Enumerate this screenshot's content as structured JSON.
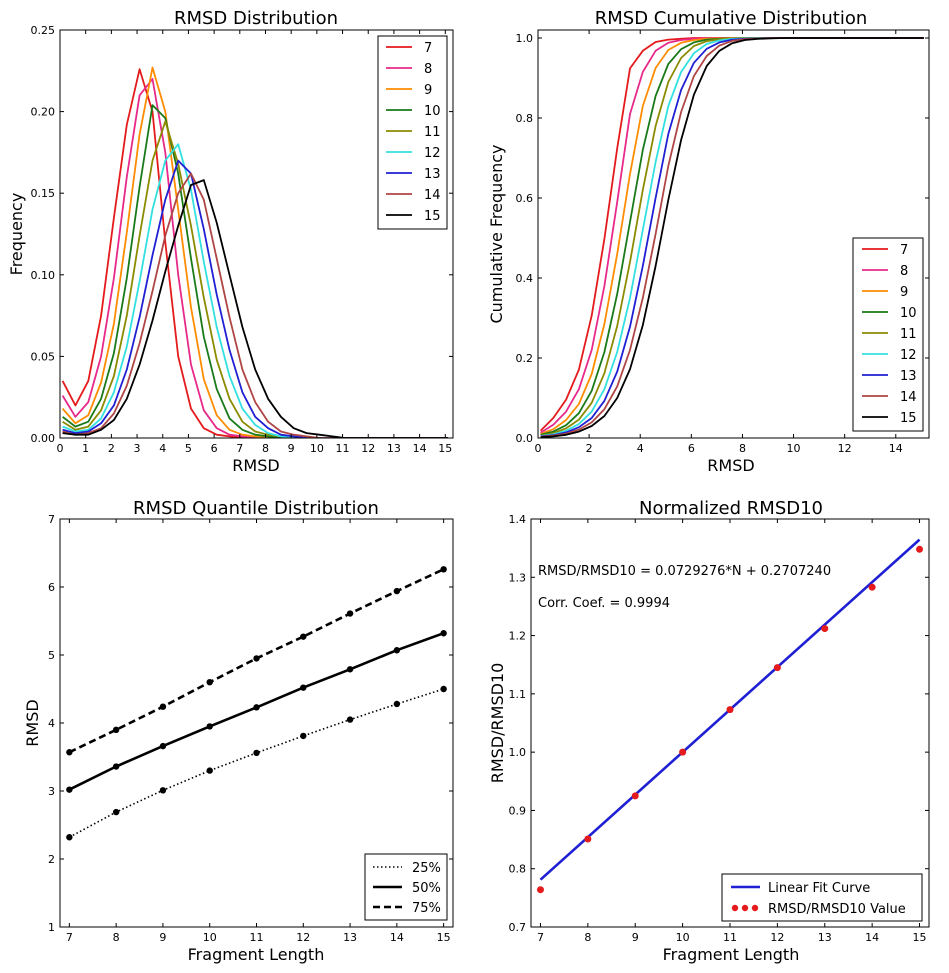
{
  "chart_data": [
    {
      "type": "line",
      "title": "RMSD Distribution",
      "xlabel": "RMSD",
      "ylabel": "Frequency",
      "xlim": [
        0,
        15.3
      ],
      "ylim": [
        0,
        0.25
      ],
      "xticks": [
        "0",
        "1",
        "2",
        "3",
        "4",
        "5",
        "6",
        "7",
        "8",
        "9",
        "10",
        "11",
        "12",
        "13",
        "14",
        "15"
      ],
      "yticks": [
        "0.00",
        "0.05",
        "0.10",
        "0.15",
        "0.20",
        "0.25"
      ],
      "legend_position": "top-right",
      "x": [
        0.1,
        0.6,
        1.1,
        1.6,
        2.1,
        2.6,
        3.1,
        3.6,
        4.1,
        4.6,
        5.1,
        5.6,
        6.1,
        6.6,
        7.1,
        7.6,
        8.1,
        8.6,
        9.1,
        9.6,
        10.1,
        10.6,
        11.1,
        11.6,
        12.1,
        12.6,
        13.1,
        13.6,
        14.1,
        14.6,
        15.1
      ],
      "series": [
        {
          "name": "7",
          "color": "#e41a1c",
          "values": [
            0.035,
            0.02,
            0.035,
            0.075,
            0.135,
            0.192,
            0.226,
            0.2,
            0.12,
            0.05,
            0.018,
            0.006,
            0.002,
            0.001,
            0,
            0,
            0,
            0,
            0,
            0,
            0,
            0,
            0,
            0,
            0,
            0,
            0,
            0,
            0,
            0,
            0
          ]
        },
        {
          "name": "8",
          "color": "#e7298a",
          "values": [
            0.026,
            0.013,
            0.022,
            0.05,
            0.098,
            0.16,
            0.21,
            0.22,
            0.175,
            0.1,
            0.045,
            0.017,
            0.006,
            0.002,
            0.001,
            0,
            0,
            0,
            0,
            0,
            0,
            0,
            0,
            0,
            0,
            0,
            0,
            0,
            0,
            0,
            0
          ]
        },
        {
          "name": "9",
          "color": "#ff8c00",
          "values": [
            0.018,
            0.009,
            0.014,
            0.034,
            0.07,
            0.126,
            0.186,
            0.227,
            0.2,
            0.14,
            0.08,
            0.036,
            0.014,
            0.005,
            0.002,
            0.001,
            0,
            0,
            0,
            0,
            0,
            0,
            0,
            0,
            0,
            0,
            0,
            0,
            0,
            0,
            0
          ]
        },
        {
          "name": "10",
          "color": "#1a7a1a",
          "values": [
            0.013,
            0.007,
            0.01,
            0.024,
            0.052,
            0.098,
            0.154,
            0.204,
            0.196,
            0.162,
            0.11,
            0.062,
            0.03,
            0.012,
            0.005,
            0.002,
            0.001,
            0,
            0,
            0,
            0,
            0,
            0,
            0,
            0,
            0,
            0,
            0,
            0,
            0,
            0
          ]
        },
        {
          "name": "11",
          "color": "#8b8b00",
          "values": [
            0.01,
            0.005,
            0.007,
            0.017,
            0.038,
            0.075,
            0.124,
            0.17,
            0.194,
            0.168,
            0.13,
            0.086,
            0.048,
            0.024,
            0.01,
            0.004,
            0.002,
            0.001,
            0,
            0,
            0,
            0,
            0,
            0,
            0,
            0,
            0,
            0,
            0,
            0,
            0
          ]
        },
        {
          "name": "12",
          "color": "#33e0e0",
          "values": [
            0.007,
            0.004,
            0.005,
            0.012,
            0.028,
            0.056,
            0.096,
            0.14,
            0.17,
            0.18,
            0.152,
            0.108,
            0.068,
            0.038,
            0.018,
            0.008,
            0.003,
            0.001,
            0,
            0,
            0,
            0,
            0,
            0,
            0,
            0,
            0,
            0,
            0,
            0,
            0
          ]
        },
        {
          "name": "13",
          "color": "#1f1fd4",
          "values": [
            0.005,
            0.003,
            0.004,
            0.009,
            0.02,
            0.042,
            0.074,
            0.112,
            0.146,
            0.17,
            0.162,
            0.128,
            0.088,
            0.054,
            0.028,
            0.013,
            0.006,
            0.002,
            0.001,
            0,
            0,
            0,
            0,
            0,
            0,
            0,
            0,
            0,
            0,
            0,
            0
          ]
        },
        {
          "name": "14",
          "color": "#b04545",
          "values": [
            0.004,
            0.002,
            0.003,
            0.006,
            0.015,
            0.032,
            0.058,
            0.09,
            0.124,
            0.15,
            0.162,
            0.146,
            0.11,
            0.074,
            0.042,
            0.022,
            0.01,
            0.004,
            0.002,
            0.001,
            0,
            0,
            0,
            0,
            0,
            0,
            0,
            0,
            0,
            0,
            0
          ]
        },
        {
          "name": "15",
          "color": "#000000",
          "values": [
            0.003,
            0.002,
            0.002,
            0.005,
            0.011,
            0.024,
            0.045,
            0.072,
            0.102,
            0.13,
            0.155,
            0.158,
            0.132,
            0.1,
            0.068,
            0.042,
            0.024,
            0.013,
            0.006,
            0.003,
            0.002,
            0.001,
            0,
            0,
            0,
            0,
            0,
            0,
            0,
            0,
            0
          ]
        }
      ]
    },
    {
      "type": "line",
      "title": "RMSD Cumulative Distribution",
      "xlabel": "RMSD",
      "ylabel": "Cumulative Frequency",
      "xlim": [
        0,
        15.3
      ],
      "ylim": [
        0,
        1.02
      ],
      "xticks": [
        "0",
        "2",
        "4",
        "6",
        "8",
        "10",
        "12",
        "14"
      ],
      "yticks": [
        "0.0",
        "0.2",
        "0.4",
        "0.6",
        "0.8",
        "1.0"
      ],
      "legend_position": "lower-right",
      "x": [
        0.1,
        0.6,
        1.1,
        1.6,
        2.1,
        2.6,
        3.1,
        3.6,
        4.1,
        4.6,
        5.1,
        5.6,
        6.1,
        6.6,
        7.1,
        7.6,
        8.1,
        8.6,
        9.1,
        9.6,
        10.1,
        10.6,
        11.1,
        11.6,
        12.1,
        12.6,
        13.1,
        13.6,
        14.1,
        14.6,
        15.1
      ],
      "series": [
        {
          "name": "7",
          "color": "#e41a1c",
          "values": [
            0.018,
            0.05,
            0.096,
            0.171,
            0.306,
            0.498,
            0.724,
            0.924,
            0.968,
            0.99,
            0.996,
            0.998,
            1.0,
            1.0,
            1.0,
            1.0,
            1.0,
            1.0,
            1.0,
            1.0,
            1.0,
            1.0,
            1.0,
            1.0,
            1.0,
            1.0,
            1.0,
            1.0,
            1.0,
            1.0,
            1.0
          ]
        },
        {
          "name": "8",
          "color": "#e7298a",
          "values": [
            0.013,
            0.033,
            0.066,
            0.122,
            0.22,
            0.38,
            0.59,
            0.81,
            0.915,
            0.968,
            0.988,
            0.995,
            0.998,
            0.999,
            1.0,
            1.0,
            1.0,
            1.0,
            1.0,
            1.0,
            1.0,
            1.0,
            1.0,
            1.0,
            1.0,
            1.0,
            1.0,
            1.0,
            1.0,
            1.0,
            1.0
          ]
        },
        {
          "name": "9",
          "color": "#ff8c00",
          "values": [
            0.01,
            0.022,
            0.045,
            0.085,
            0.16,
            0.285,
            0.46,
            0.66,
            0.83,
            0.925,
            0.97,
            0.988,
            0.995,
            0.998,
            0.999,
            1.0,
            1.0,
            1.0,
            1.0,
            1.0,
            1.0,
            1.0,
            1.0,
            1.0,
            1.0,
            1.0,
            1.0,
            1.0,
            1.0,
            1.0,
            1.0
          ]
        },
        {
          "name": "10",
          "color": "#1a7a1a",
          "values": [
            0.008,
            0.016,
            0.032,
            0.062,
            0.118,
            0.215,
            0.36,
            0.54,
            0.72,
            0.855,
            0.935,
            0.972,
            0.989,
            0.996,
            0.998,
            0.999,
            1.0,
            1.0,
            1.0,
            1.0,
            1.0,
            1.0,
            1.0,
            1.0,
            1.0,
            1.0,
            1.0,
            1.0,
            1.0,
            1.0,
            1.0
          ]
        },
        {
          "name": "11",
          "color": "#8b8b00",
          "values": [
            0.006,
            0.012,
            0.024,
            0.046,
            0.088,
            0.162,
            0.28,
            0.44,
            0.62,
            0.78,
            0.89,
            0.95,
            0.98,
            0.992,
            0.997,
            0.999,
            1.0,
            1.0,
            1.0,
            1.0,
            1.0,
            1.0,
            1.0,
            1.0,
            1.0,
            1.0,
            1.0,
            1.0,
            1.0,
            1.0,
            1.0
          ]
        },
        {
          "name": "12",
          "color": "#33e0e0",
          "values": [
            0.005,
            0.009,
            0.018,
            0.035,
            0.066,
            0.122,
            0.215,
            0.35,
            0.52,
            0.69,
            0.83,
            0.915,
            0.962,
            0.985,
            0.994,
            0.998,
            0.999,
            1.0,
            1.0,
            1.0,
            1.0,
            1.0,
            1.0,
            1.0,
            1.0,
            1.0,
            1.0,
            1.0,
            1.0,
            1.0,
            1.0
          ]
        },
        {
          "name": "13",
          "color": "#1f1fd4",
          "values": [
            0.004,
            0.007,
            0.014,
            0.027,
            0.05,
            0.093,
            0.166,
            0.278,
            0.43,
            0.6,
            0.76,
            0.87,
            0.938,
            0.973,
            0.989,
            0.996,
            0.998,
            0.999,
            1.0,
            1.0,
            1.0,
            1.0,
            1.0,
            1.0,
            1.0,
            1.0,
            1.0,
            1.0,
            1.0,
            1.0,
            1.0
          ]
        },
        {
          "name": "14",
          "color": "#b04545",
          "values": [
            0.003,
            0.006,
            0.011,
            0.021,
            0.039,
            0.072,
            0.129,
            0.22,
            0.35,
            0.51,
            0.68,
            0.815,
            0.905,
            0.955,
            0.981,
            0.993,
            0.997,
            0.999,
            1.0,
            1.0,
            1.0,
            1.0,
            1.0,
            1.0,
            1.0,
            1.0,
            1.0,
            1.0,
            1.0,
            1.0,
            1.0
          ]
        },
        {
          "name": "15",
          "color": "#000000",
          "values": [
            0.002,
            0.004,
            0.008,
            0.016,
            0.03,
            0.055,
            0.1,
            0.172,
            0.282,
            0.43,
            0.595,
            0.745,
            0.858,
            0.93,
            0.968,
            0.987,
            0.995,
            0.998,
            0.999,
            1.0,
            1.0,
            1.0,
            1.0,
            1.0,
            1.0,
            1.0,
            1.0,
            1.0,
            1.0,
            1.0,
            1.0
          ]
        }
      ]
    },
    {
      "type": "line",
      "title": "RMSD Quantile Distribution",
      "xlabel": "Fragment Length",
      "ylabel": "RMSD",
      "xlim": [
        6.8,
        15.2
      ],
      "ylim": [
        1,
        7
      ],
      "xticks": [
        "7",
        "8",
        "9",
        "10",
        "11",
        "12",
        "13",
        "14",
        "15"
      ],
      "yticks": [
        "1",
        "2",
        "3",
        "4",
        "5",
        "6",
        "7"
      ],
      "legend_position": "lower-right",
      "x": [
        7,
        8,
        9,
        10,
        11,
        12,
        13,
        14,
        15
      ],
      "series": [
        {
          "name": "25%",
          "style": "dotted",
          "color": "#000000",
          "values": [
            2.32,
            2.69,
            3.01,
            3.3,
            3.56,
            3.81,
            4.05,
            4.28,
            4.5
          ]
        },
        {
          "name": "50%",
          "style": "solid",
          "color": "#000000",
          "values": [
            3.02,
            3.36,
            3.66,
            3.95,
            4.23,
            4.52,
            4.79,
            5.07,
            5.32
          ]
        },
        {
          "name": "75%",
          "style": "dashed",
          "color": "#000000",
          "values": [
            3.57,
            3.9,
            4.24,
            4.6,
            4.95,
            5.27,
            5.61,
            5.94,
            6.26
          ]
        }
      ]
    },
    {
      "type": "scatter",
      "title": "Normalized RMSD10",
      "xlabel": "Fragment Length",
      "ylabel": "RMSD/RMSD10",
      "xlim": [
        6.8,
        15.2
      ],
      "ylim": [
        0.7,
        1.4
      ],
      "xticks": [
        "7",
        "8",
        "9",
        "10",
        "11",
        "12",
        "13",
        "14",
        "15"
      ],
      "yticks": [
        "0.7",
        "0.8",
        "0.9",
        "1.0",
        "1.1",
        "1.2",
        "1.3",
        "1.4"
      ],
      "legend_position": "lower-right",
      "annotations": [
        "RMSD/RMSD10 = 0.0729276*N + 0.2707240",
        "Corr. Coef. = 0.9994"
      ],
      "fit": {
        "name": "Linear Fit Curve",
        "color": "#1f1fd4",
        "slope": 0.0729276,
        "intercept": 0.270724,
        "x": [
          7,
          15
        ]
      },
      "series": [
        {
          "name": "RMSD/RMSD10 Value",
          "color": "#e41a1c",
          "x": [
            7,
            8,
            9,
            10,
            11,
            12,
            13,
            14,
            15
          ],
          "values": [
            0.764,
            0.851,
            0.925,
            1.0,
            1.073,
            1.145,
            1.212,
            1.283,
            1.348
          ]
        }
      ]
    }
  ]
}
